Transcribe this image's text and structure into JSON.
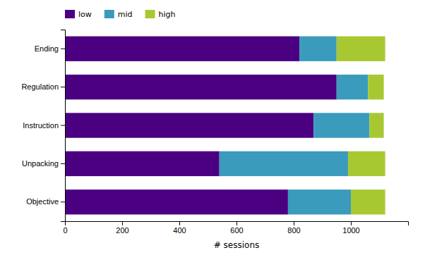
{
  "chart_data": {
    "type": "bar",
    "orientation": "horizontal",
    "stacked": true,
    "categories": [
      "Objective",
      "Unpacking",
      "Instruction",
      "Regulation",
      "Ending"
    ],
    "series": [
      {
        "name": "low",
        "color": "#4B0082",
        "values": [
          780,
          540,
          870,
          950,
          820
        ]
      },
      {
        "name": "mid",
        "color": "#3A9BBD",
        "values": [
          220,
          450,
          195,
          110,
          130
        ]
      },
      {
        "name": "high",
        "color": "#A8C832",
        "values": [
          120,
          130,
          50,
          55,
          170
        ]
      }
    ],
    "xlabel": "# sessions",
    "xlim": [
      0,
      1200
    ],
    "xticks": [
      0,
      200,
      400,
      600,
      800,
      1000
    ],
    "legend": "upper left"
  }
}
